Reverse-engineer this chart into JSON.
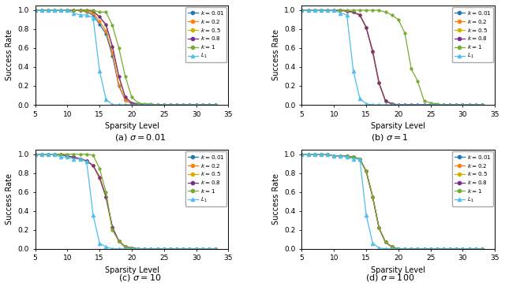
{
  "x": [
    5,
    6,
    7,
    8,
    9,
    10,
    11,
    12,
    13,
    14,
    15,
    16,
    17,
    18,
    19,
    20,
    21,
    22,
    23,
    24,
    25,
    26,
    27,
    28,
    29,
    30,
    31,
    32,
    33
  ],
  "panels": [
    {
      "label": "(a) $\\sigma = 0.01$",
      "series": {
        "k001": [
          1.0,
          1.0,
          1.0,
          1.0,
          1.0,
          1.0,
          1.0,
          1.0,
          0.98,
          0.95,
          0.85,
          0.75,
          0.52,
          0.2,
          0.05,
          0.01,
          0.0,
          0.0,
          0.0,
          0.0,
          0.0,
          0.0,
          0.0,
          0.0,
          0.0,
          0.0,
          0.0,
          0.0,
          0.0
        ],
        "k02": [
          1.0,
          1.0,
          1.0,
          1.0,
          1.0,
          1.0,
          1.0,
          1.0,
          0.98,
          0.97,
          0.88,
          0.78,
          0.55,
          0.21,
          0.05,
          0.01,
          0.0,
          0.0,
          0.0,
          0.0,
          0.0,
          0.0,
          0.0,
          0.0,
          0.0,
          0.0,
          0.0,
          0.0,
          0.0
        ],
        "k05": [
          1.0,
          1.0,
          1.0,
          1.0,
          1.0,
          1.0,
          1.0,
          1.0,
          1.0,
          0.98,
          0.93,
          0.84,
          0.61,
          0.3,
          0.08,
          0.02,
          0.01,
          0.0,
          0.0,
          0.0,
          0.0,
          0.0,
          0.0,
          0.0,
          0.0,
          0.0,
          0.0,
          0.0,
          0.0
        ],
        "k08": [
          1.0,
          1.0,
          1.0,
          1.0,
          1.0,
          1.0,
          1.0,
          1.0,
          1.0,
          0.99,
          0.93,
          0.85,
          0.62,
          0.3,
          0.08,
          0.02,
          0.01,
          0.0,
          0.0,
          0.0,
          0.0,
          0.0,
          0.0,
          0.0,
          0.0,
          0.0,
          0.0,
          0.0,
          0.0
        ],
        "k1": [
          1.0,
          1.0,
          1.0,
          1.0,
          1.0,
          1.0,
          1.0,
          1.0,
          1.0,
          1.0,
          0.98,
          0.98,
          0.84,
          0.6,
          0.3,
          0.08,
          0.02,
          0.01,
          0.01,
          0.0,
          0.0,
          0.0,
          0.0,
          0.0,
          0.0,
          0.0,
          0.0,
          0.0,
          0.0
        ],
        "L1": [
          1.0,
          1.0,
          1.0,
          1.0,
          1.0,
          1.0,
          0.97,
          0.95,
          0.95,
          0.92,
          0.36,
          0.06,
          0.0,
          0.0,
          0.0,
          0.0,
          0.0,
          0.0,
          0.0,
          0.0,
          0.0,
          0.0,
          0.0,
          0.0,
          0.0,
          0.0,
          0.0,
          0.0,
          0.0
        ]
      }
    },
    {
      "label": "(b) $\\sigma = 1$",
      "series": {
        "k001": [
          1.0,
          1.0,
          1.0,
          1.0,
          1.0,
          1.0,
          1.0,
          0.99,
          0.98,
          0.95,
          0.82,
          0.56,
          0.23,
          0.04,
          0.01,
          0.0,
          0.0,
          0.0,
          0.0,
          0.0,
          0.0,
          0.0,
          0.0,
          0.0,
          0.0,
          0.0,
          0.0,
          0.0,
          0.0
        ],
        "k02": [
          1.0,
          1.0,
          1.0,
          1.0,
          1.0,
          1.0,
          1.0,
          0.99,
          0.98,
          0.95,
          0.82,
          0.56,
          0.23,
          0.04,
          0.01,
          0.0,
          0.0,
          0.0,
          0.0,
          0.0,
          0.0,
          0.0,
          0.0,
          0.0,
          0.0,
          0.0,
          0.0,
          0.0,
          0.0
        ],
        "k05": [
          1.0,
          1.0,
          1.0,
          1.0,
          1.0,
          1.0,
          1.0,
          0.99,
          0.98,
          0.95,
          0.82,
          0.57,
          0.23,
          0.04,
          0.01,
          0.0,
          0.0,
          0.0,
          0.0,
          0.0,
          0.0,
          0.0,
          0.0,
          0.0,
          0.0,
          0.0,
          0.0,
          0.0,
          0.0
        ],
        "k08": [
          1.0,
          1.0,
          1.0,
          1.0,
          1.0,
          1.0,
          1.0,
          0.99,
          0.98,
          0.95,
          0.82,
          0.57,
          0.23,
          0.04,
          0.01,
          0.0,
          0.0,
          0.0,
          0.0,
          0.0,
          0.0,
          0.0,
          0.0,
          0.0,
          0.0,
          0.0,
          0.0,
          0.0,
          0.0
        ],
        "k1": [
          1.0,
          1.0,
          1.0,
          1.0,
          1.0,
          1.0,
          1.0,
          1.0,
          1.0,
          1.0,
          1.0,
          1.0,
          1.0,
          0.98,
          0.95,
          0.9,
          0.76,
          0.38,
          0.25,
          0.04,
          0.02,
          0.01,
          0.0,
          0.0,
          0.0,
          0.0,
          0.0,
          0.0,
          0.0
        ],
        "L1": [
          1.0,
          1.0,
          1.0,
          1.0,
          1.0,
          1.0,
          0.97,
          0.95,
          0.36,
          0.07,
          0.01,
          0.0,
          0.0,
          0.0,
          0.0,
          0.0,
          0.0,
          0.0,
          0.0,
          0.0,
          0.0,
          0.0,
          0.0,
          0.0,
          0.0,
          0.0,
          0.0,
          0.0,
          0.0
        ]
      }
    },
    {
      "label": "(c) $\\sigma = 10$",
      "series": {
        "k001": [
          1.0,
          1.0,
          1.0,
          1.0,
          1.0,
          0.98,
          0.97,
          0.95,
          0.93,
          0.88,
          0.75,
          0.55,
          0.22,
          0.08,
          0.02,
          0.01,
          0.0,
          0.0,
          0.0,
          0.0,
          0.0,
          0.0,
          0.0,
          0.0,
          0.0,
          0.0,
          0.0,
          0.0,
          0.0
        ],
        "k02": [
          1.0,
          1.0,
          1.0,
          1.0,
          1.0,
          0.98,
          0.97,
          0.95,
          0.93,
          0.88,
          0.75,
          0.55,
          0.22,
          0.08,
          0.02,
          0.01,
          0.0,
          0.0,
          0.0,
          0.0,
          0.0,
          0.0,
          0.0,
          0.0,
          0.0,
          0.0,
          0.0,
          0.0,
          0.0
        ],
        "k05": [
          1.0,
          1.0,
          1.0,
          1.0,
          1.0,
          0.98,
          0.97,
          0.95,
          0.93,
          0.88,
          0.75,
          0.55,
          0.22,
          0.08,
          0.02,
          0.01,
          0.0,
          0.0,
          0.0,
          0.0,
          0.0,
          0.0,
          0.0,
          0.0,
          0.0,
          0.0,
          0.0,
          0.0,
          0.0
        ],
        "k08": [
          1.0,
          1.0,
          1.0,
          1.0,
          1.0,
          0.98,
          0.97,
          0.95,
          0.93,
          0.88,
          0.76,
          0.55,
          0.23,
          0.08,
          0.02,
          0.01,
          0.0,
          0.0,
          0.0,
          0.0,
          0.0,
          0.0,
          0.0,
          0.0,
          0.0,
          0.0,
          0.0,
          0.0,
          0.0
        ],
        "k1": [
          1.0,
          1.0,
          1.0,
          1.0,
          1.0,
          1.0,
          1.0,
          1.0,
          1.0,
          0.99,
          0.85,
          0.6,
          0.2,
          0.08,
          0.02,
          0.01,
          0.0,
          0.0,
          0.0,
          0.0,
          0.0,
          0.0,
          0.0,
          0.0,
          0.0,
          0.0,
          0.0,
          0.0,
          0.0
        ],
        "L1": [
          1.0,
          1.0,
          1.0,
          1.0,
          0.97,
          0.97,
          0.95,
          0.95,
          0.92,
          0.36,
          0.06,
          0.02,
          0.0,
          0.0,
          0.0,
          0.0,
          0.0,
          0.0,
          0.0,
          0.0,
          0.0,
          0.0,
          0.0,
          0.0,
          0.0,
          0.0,
          0.0,
          0.0,
          0.0
        ]
      }
    },
    {
      "label": "(d) $\\sigma = 100$",
      "series": {
        "k001": [
          1.0,
          1.0,
          1.0,
          1.0,
          1.0,
          0.98,
          0.98,
          0.98,
          0.97,
          0.95,
          0.82,
          0.55,
          0.22,
          0.07,
          0.02,
          0.0,
          0.0,
          0.0,
          0.0,
          0.0,
          0.0,
          0.0,
          0.0,
          0.0,
          0.0,
          0.0,
          0.0,
          0.0,
          0.0
        ],
        "k02": [
          1.0,
          1.0,
          1.0,
          1.0,
          1.0,
          0.98,
          0.98,
          0.98,
          0.97,
          0.95,
          0.82,
          0.55,
          0.22,
          0.07,
          0.02,
          0.0,
          0.0,
          0.0,
          0.0,
          0.0,
          0.0,
          0.0,
          0.0,
          0.0,
          0.0,
          0.0,
          0.0,
          0.0,
          0.0
        ],
        "k05": [
          1.0,
          1.0,
          1.0,
          1.0,
          1.0,
          0.98,
          0.98,
          0.98,
          0.97,
          0.95,
          0.82,
          0.55,
          0.22,
          0.07,
          0.02,
          0.0,
          0.0,
          0.0,
          0.0,
          0.0,
          0.0,
          0.0,
          0.0,
          0.0,
          0.0,
          0.0,
          0.0,
          0.0,
          0.0
        ],
        "k08": [
          1.0,
          1.0,
          1.0,
          1.0,
          1.0,
          0.98,
          0.98,
          0.98,
          0.97,
          0.95,
          0.82,
          0.55,
          0.22,
          0.07,
          0.02,
          0.0,
          0.0,
          0.0,
          0.0,
          0.0,
          0.0,
          0.0,
          0.0,
          0.0,
          0.0,
          0.0,
          0.0,
          0.0,
          0.0
        ],
        "k1": [
          1.0,
          1.0,
          1.0,
          1.0,
          1.0,
          0.98,
          0.98,
          0.98,
          0.97,
          0.95,
          0.82,
          0.55,
          0.22,
          0.07,
          0.02,
          0.0,
          0.0,
          0.0,
          0.0,
          0.0,
          0.0,
          0.0,
          0.0,
          0.0,
          0.0,
          0.0,
          0.0,
          0.0,
          0.0
        ],
        "L1": [
          1.0,
          1.0,
          1.0,
          1.0,
          1.0,
          0.98,
          0.98,
          0.97,
          0.95,
          0.95,
          0.36,
          0.06,
          0.01,
          0.0,
          0.0,
          0.0,
          0.0,
          0.0,
          0.0,
          0.0,
          0.0,
          0.0,
          0.0,
          0.0,
          0.0,
          0.0,
          0.0,
          0.0,
          0.0
        ]
      }
    }
  ],
  "colors": {
    "k001": "#1f77b4",
    "k02": "#ff7f0e",
    "k05": "#d4b200",
    "k08": "#7b2d8b",
    "k1": "#77ac30",
    "L1": "#4dbeee"
  },
  "legend_labels": {
    "k001": "k = 0.01",
    "k02": "k = 0.2",
    "k05": "k = 0.5",
    "k08": "k = 0.8",
    "k1": "k = 1",
    "L1": "L_1"
  },
  "xlabel": "Sparsity Level",
  "ylabel": "Success Rate",
  "xlim": [
    5,
    35
  ],
  "ylim": [
    0,
    1.05
  ],
  "xticks": [
    5,
    10,
    15,
    20,
    25,
    30,
    35
  ],
  "yticks": [
    0.0,
    0.2,
    0.4,
    0.6,
    0.8,
    1.0
  ]
}
